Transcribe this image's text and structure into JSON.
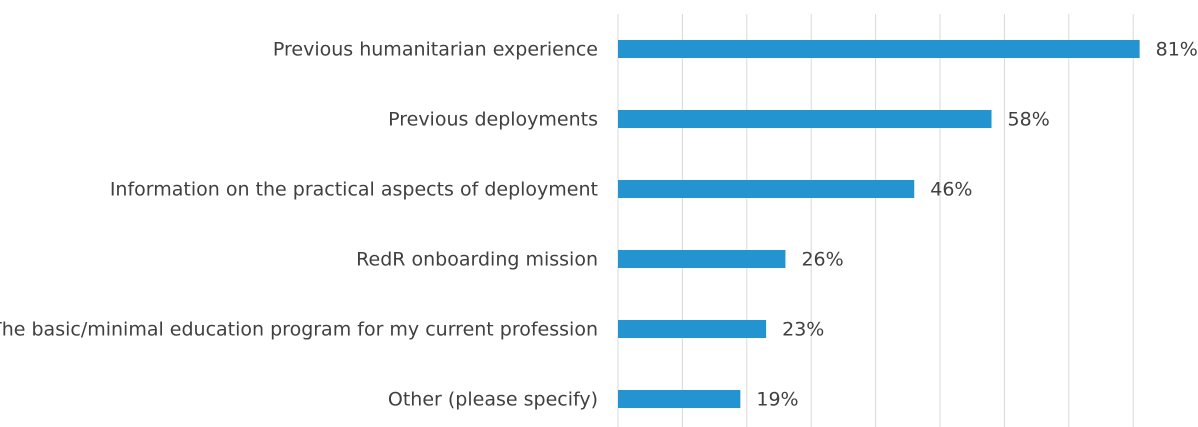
{
  "chart_data": {
    "type": "bar",
    "orientation": "horizontal",
    "categories": [
      "Previous humanitarian experience",
      "Previous deployments",
      "Information on the practical aspects of deployment",
      "RedR onboarding mission",
      "The basic/minimal education program for my current profession",
      "Other (please specify)"
    ],
    "values": [
      81,
      58,
      46,
      26,
      23,
      19
    ],
    "value_labels": [
      "81%",
      "58%",
      "46%",
      "26%",
      "23%",
      "19%"
    ],
    "color": "#2394d0",
    "xlim": [
      0,
      90
    ],
    "xticks": [
      0,
      10,
      20,
      30,
      40,
      50,
      60,
      70,
      80
    ],
    "grid": true
  }
}
